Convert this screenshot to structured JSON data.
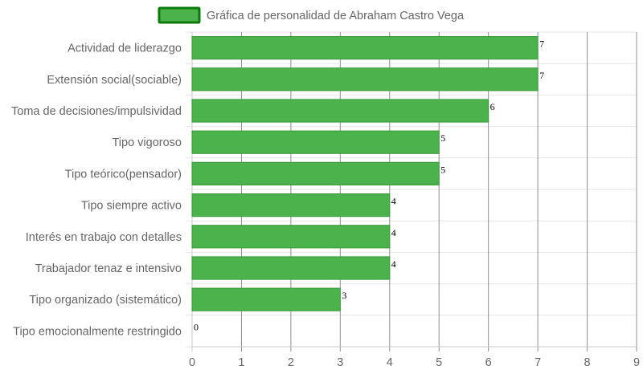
{
  "chart_data": {
    "type": "bar",
    "orientation": "horizontal",
    "legend": {
      "label": "Gráfica de personalidad de Abraham Castro Vega",
      "position": "top",
      "color": "#4cb34c",
      "border_color": "#0a7a0a"
    },
    "categories": [
      "Actividad de liderazgo",
      "Extensión social(sociable)",
      "Toma de decisiones/impulsividad",
      "Tipo vigoroso",
      "Tipo teórico(pensador)",
      "Tipo siempre activo",
      "Interés en trabajo con detalles",
      "Trabajador tenaz e intensivo",
      "Tipo organizado (sistemático)",
      "Tipo emocionalmente restringido"
    ],
    "values": [
      7,
      7,
      6,
      5,
      5,
      4,
      4,
      4,
      3,
      0
    ],
    "value_labels": [
      "7",
      "7",
      "6",
      "5",
      "5",
      "4",
      "4",
      "4",
      "3",
      "0"
    ],
    "xlim": [
      0,
      9
    ],
    "x_ticks": [
      "0",
      "1",
      "2",
      "3",
      "4",
      "5",
      "6",
      "7",
      "8",
      "9"
    ],
    "grid": true,
    "bar_color": "#4cb34c",
    "bar_border_color": "#3a9a3a"
  }
}
